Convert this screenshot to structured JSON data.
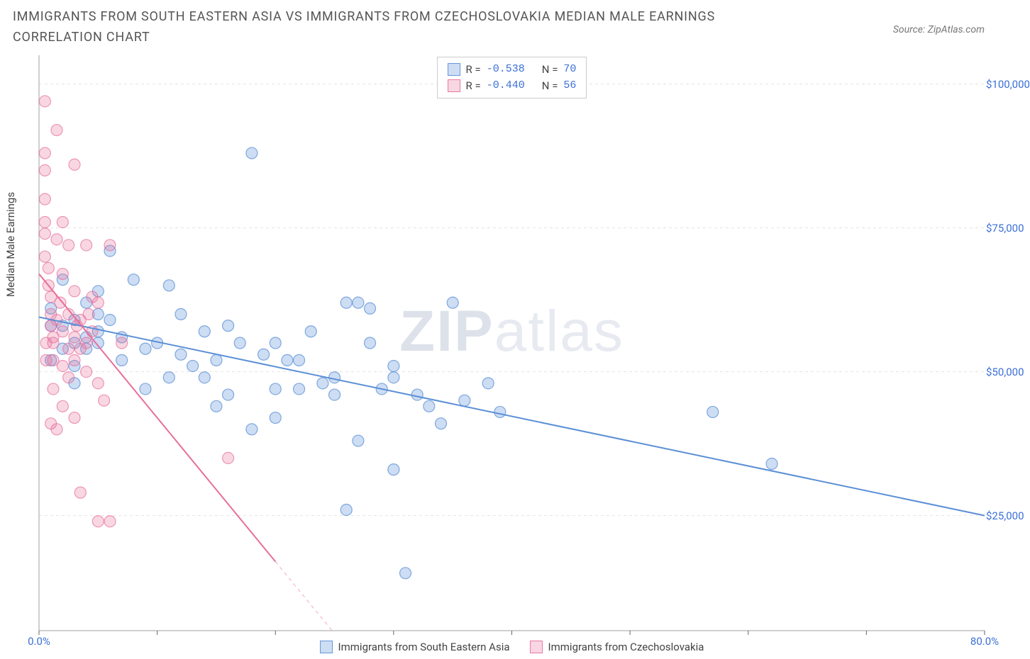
{
  "title": "IMMIGRANTS FROM SOUTH EASTERN ASIA VS IMMIGRANTS FROM CZECHOSLOVAKIA MEDIAN MALE EARNINGS CORRELATION CHART",
  "source_label": "Source: ZipAtlas.com",
  "y_axis_label": "Median Male Earnings",
  "watermark": {
    "bold": "ZIP",
    "light": "atlas"
  },
  "chart": {
    "type": "scatter",
    "background_color": "#ffffff",
    "grid_color": "#e2e2e2",
    "axis_color": "#bfbfbf",
    "tick_color": "#666666",
    "value_color": "#3b6fd6",
    "x": {
      "min": 0,
      "max": 80,
      "label_min": "0.0%",
      "label_max": "80.0%",
      "ticks": [
        0,
        10,
        20,
        30,
        40,
        50,
        60,
        70,
        80
      ]
    },
    "y": {
      "min": 5000,
      "max": 105000,
      "gridlines": [
        25000,
        50000,
        75000,
        100000
      ],
      "labels": [
        "$25,000",
        "$50,000",
        "$75,000",
        "$100,000"
      ]
    },
    "marker_radius": 8,
    "marker_opacity": 0.35,
    "line_width": 2,
    "series": [
      {
        "id": "sea",
        "name": "Immigrants from South Eastern Asia",
        "color": "#5b8fd6",
        "fill": "rgba(91,143,214,0.30)",
        "stroke": "rgba(91,143,214,0.75)",
        "r": "-0.538",
        "n": "70",
        "regression": {
          "x1": 0,
          "y1": 59500,
          "x2": 80,
          "y2": 25000
        },
        "points": [
          [
            2,
            58000
          ],
          [
            3,
            59000
          ],
          [
            4,
            56000
          ],
          [
            4,
            62000
          ],
          [
            5,
            57000
          ],
          [
            5,
            64000
          ],
          [
            6,
            71000
          ],
          [
            3,
            51000
          ],
          [
            1,
            52000
          ],
          [
            1,
            58000
          ],
          [
            1,
            61000
          ],
          [
            2,
            66000
          ],
          [
            2,
            54000
          ],
          [
            3,
            55000
          ],
          [
            4,
            54000
          ],
          [
            5,
            55000
          ],
          [
            6,
            59000
          ],
          [
            7,
            56000
          ],
          [
            8,
            66000
          ],
          [
            9,
            54000
          ],
          [
            10,
            55000
          ],
          [
            11,
            65000
          ],
          [
            12,
            60000
          ],
          [
            12,
            53000
          ],
          [
            13,
            51000
          ],
          [
            14,
            49000
          ],
          [
            15,
            52000
          ],
          [
            15,
            44000
          ],
          [
            16,
            46000
          ],
          [
            17,
            55000
          ],
          [
            18,
            88000
          ],
          [
            18,
            40000
          ],
          [
            19,
            53000
          ],
          [
            20,
            47000
          ],
          [
            20,
            55000
          ],
          [
            21,
            52000
          ],
          [
            22,
            47000
          ],
          [
            23,
            57000
          ],
          [
            24,
            48000
          ],
          [
            25,
            46000
          ],
          [
            26,
            62000
          ],
          [
            27,
            62000
          ],
          [
            28,
            61000
          ],
          [
            28,
            55000
          ],
          [
            29,
            47000
          ],
          [
            30,
            33000
          ],
          [
            30,
            51000
          ],
          [
            31,
            15000
          ],
          [
            32,
            46000
          ],
          [
            33,
            44000
          ],
          [
            34,
            41000
          ],
          [
            35,
            62000
          ],
          [
            36,
            45000
          ],
          [
            26,
            26000
          ],
          [
            27,
            38000
          ],
          [
            25,
            49000
          ],
          [
            30,
            49000
          ],
          [
            22,
            52000
          ],
          [
            20,
            42000
          ],
          [
            38,
            48000
          ],
          [
            39,
            43000
          ],
          [
            57,
            43000
          ],
          [
            62,
            34000
          ],
          [
            14,
            57000
          ],
          [
            16,
            58000
          ],
          [
            11,
            49000
          ],
          [
            9,
            47000
          ],
          [
            7,
            52000
          ],
          [
            3,
            48000
          ],
          [
            5,
            60000
          ]
        ]
      },
      {
        "id": "cz",
        "name": "Immigrants from Czechoslovakia",
        "color": "#e76f9b",
        "fill": "rgba(231,111,155,0.28)",
        "stroke": "rgba(231,111,155,0.70)",
        "r": "-0.440",
        "n": "56",
        "regression": {
          "x1": 0,
          "y1": 67000,
          "x2": 20,
          "y2": 17000
        },
        "regression_extend": {
          "x1": 20,
          "y1": 17000,
          "x2": 30,
          "y2": -8000
        },
        "points": [
          [
            0.5,
            97000
          ],
          [
            0.5,
            88000
          ],
          [
            0.5,
            85000
          ],
          [
            0.5,
            80000
          ],
          [
            0.5,
            76000
          ],
          [
            0.5,
            74000
          ],
          [
            0.5,
            70000
          ],
          [
            0.8,
            68000
          ],
          [
            0.8,
            65000
          ],
          [
            1,
            63000
          ],
          [
            1,
            60000
          ],
          [
            1,
            58000
          ],
          [
            1.2,
            56000
          ],
          [
            1.2,
            55000
          ],
          [
            1.5,
            92000
          ],
          [
            1.5,
            73000
          ],
          [
            1.5,
            59000
          ],
          [
            1.8,
            62000
          ],
          [
            2,
            76000
          ],
          [
            2,
            67000
          ],
          [
            2,
            57000
          ],
          [
            2.5,
            72000
          ],
          [
            2.5,
            60000
          ],
          [
            2.5,
            54000
          ],
          [
            3,
            86000
          ],
          [
            3,
            64000
          ],
          [
            3,
            52000
          ],
          [
            3.5,
            59000
          ],
          [
            4,
            72000
          ],
          [
            4,
            55000
          ],
          [
            4,
            50000
          ],
          [
            4.5,
            57000
          ],
          [
            5,
            62000
          ],
          [
            5,
            48000
          ],
          [
            5.5,
            45000
          ],
          [
            6,
            72000
          ],
          [
            1,
            41000
          ],
          [
            1.5,
            40000
          ],
          [
            2,
            44000
          ],
          [
            3,
            42000
          ],
          [
            3.5,
            29000
          ],
          [
            5,
            24000
          ],
          [
            6,
            24000
          ],
          [
            7,
            55000
          ],
          [
            2.5,
            49000
          ],
          [
            1.2,
            47000
          ],
          [
            0.6,
            55000
          ],
          [
            0.6,
            52000
          ],
          [
            3,
            56000
          ],
          [
            3.2,
            58000
          ],
          [
            4.2,
            60000
          ],
          [
            4.5,
            63000
          ],
          [
            16,
            35000
          ],
          [
            1.2,
            52000
          ],
          [
            2,
            51000
          ],
          [
            3.5,
            54000
          ]
        ]
      }
    ]
  },
  "legend_top": {
    "r_label": "R =",
    "n_label": "N ="
  },
  "bottom_legend_items": [
    {
      "color_fill": "rgba(91,143,214,0.30)",
      "color_stroke": "rgba(91,143,214,0.9)",
      "label": "Immigrants from South Eastern Asia"
    },
    {
      "color_fill": "rgba(231,111,155,0.28)",
      "color_stroke": "rgba(231,111,155,0.9)",
      "label": "Immigrants from Czechoslovakia"
    }
  ]
}
